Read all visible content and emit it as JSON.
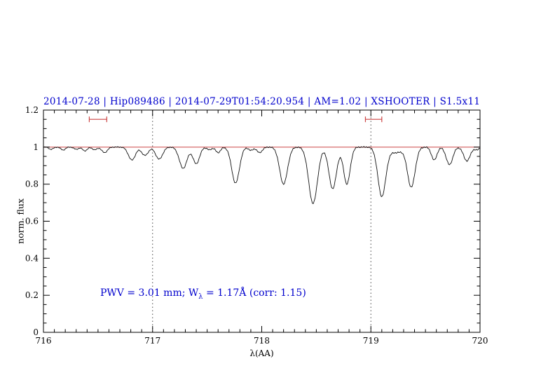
{
  "title": {
    "text": "2014-07-28 | Hip089486 | 2014-07-29T01:54:20.954 | AM=1.02 | XSHOOTER | S1.5x11",
    "color": "#0000cd"
  },
  "annotation": {
    "part1": "PWV  =  3.01 mm; W",
    "sub": "λ",
    "part2": "  =  1.17Å  (corr: 1.15)",
    "color": "#0000cd"
  },
  "axes": {
    "xlabel": "λ(AA)",
    "ylabel": "norm. flux",
    "x_ticks": [
      716,
      717,
      718,
      719,
      720
    ],
    "x_tick_labels": [
      "716",
      "717",
      "718",
      "719",
      "720"
    ],
    "x_minor_step": 0.1,
    "y_ticks": [
      0,
      0.2,
      0.4,
      0.6,
      0.8,
      1,
      1.2
    ],
    "y_tick_labels": [
      "0",
      "0.2",
      "0.4",
      "0.6",
      "0.8",
      "1",
      "1.2"
    ],
    "y_minor_step": 0.05
  },
  "colors": {
    "accent_blue": "#0000cd",
    "continuum_red": "#cc4444",
    "marker_red": "#cc4444",
    "spectrum_black": "#111111",
    "frame_black": "#000000",
    "guide_gray": "#444444"
  },
  "chart_data": {
    "type": "line",
    "title": "2014-07-28 | Hip089486 | 2014-07-29T01:54:20.954 | AM=1.02 | XSHOOTER | S1.5x11",
    "xlabel": "λ(AA)",
    "ylabel": "norm. flux",
    "xlim": [
      716,
      720
    ],
    "ylim": [
      0,
      1.2
    ],
    "grid": false,
    "continuum_level": 1.0,
    "dotted_guides_x": [
      717,
      719
    ],
    "interval_markers": [
      {
        "x1": 716.42,
        "x2": 716.58,
        "y": 1.15
      },
      {
        "x1": 718.95,
        "x2": 719.1,
        "y": 1.15
      }
    ],
    "sampling_step": 0.008,
    "noise_amplitude": 0.004,
    "absorption_lines": [
      {
        "center": 716.07,
        "depth": 0.012,
        "sigma": 0.02
      },
      {
        "center": 716.18,
        "depth": 0.016,
        "sigma": 0.02
      },
      {
        "center": 716.3,
        "depth": 0.012,
        "sigma": 0.02
      },
      {
        "center": 716.38,
        "depth": 0.02,
        "sigma": 0.022
      },
      {
        "center": 716.47,
        "depth": 0.015,
        "sigma": 0.02
      },
      {
        "center": 716.56,
        "depth": 0.03,
        "sigma": 0.025
      },
      {
        "center": 716.81,
        "depth": 0.07,
        "sigma": 0.032
      },
      {
        "center": 716.93,
        "depth": 0.045,
        "sigma": 0.03
      },
      {
        "center": 717.06,
        "depth": 0.065,
        "sigma": 0.032
      },
      {
        "center": 717.28,
        "depth": 0.115,
        "sigma": 0.035
      },
      {
        "center": 717.4,
        "depth": 0.09,
        "sigma": 0.03
      },
      {
        "center": 717.52,
        "depth": 0.015,
        "sigma": 0.02
      },
      {
        "center": 717.6,
        "depth": 0.03,
        "sigma": 0.022
      },
      {
        "center": 717.76,
        "depth": 0.195,
        "sigma": 0.035
      },
      {
        "center": 717.9,
        "depth": 0.018,
        "sigma": 0.02
      },
      {
        "center": 717.98,
        "depth": 0.03,
        "sigma": 0.025
      },
      {
        "center": 718.2,
        "depth": 0.2,
        "sigma": 0.036
      },
      {
        "center": 718.47,
        "depth": 0.305,
        "sigma": 0.04
      },
      {
        "center": 718.65,
        "depth": 0.225,
        "sigma": 0.035
      },
      {
        "center": 718.78,
        "depth": 0.2,
        "sigma": 0.03
      },
      {
        "center": 719.1,
        "depth": 0.265,
        "sigma": 0.036
      },
      {
        "center": 719.23,
        "depth": 0.03,
        "sigma": 0.06
      },
      {
        "center": 719.37,
        "depth": 0.215,
        "sigma": 0.035
      },
      {
        "center": 719.58,
        "depth": 0.07,
        "sigma": 0.025
      },
      {
        "center": 719.72,
        "depth": 0.095,
        "sigma": 0.03
      },
      {
        "center": 719.88,
        "depth": 0.075,
        "sigma": 0.03
      },
      {
        "center": 719.97,
        "depth": 0.015,
        "sigma": 0.02
      }
    ]
  }
}
